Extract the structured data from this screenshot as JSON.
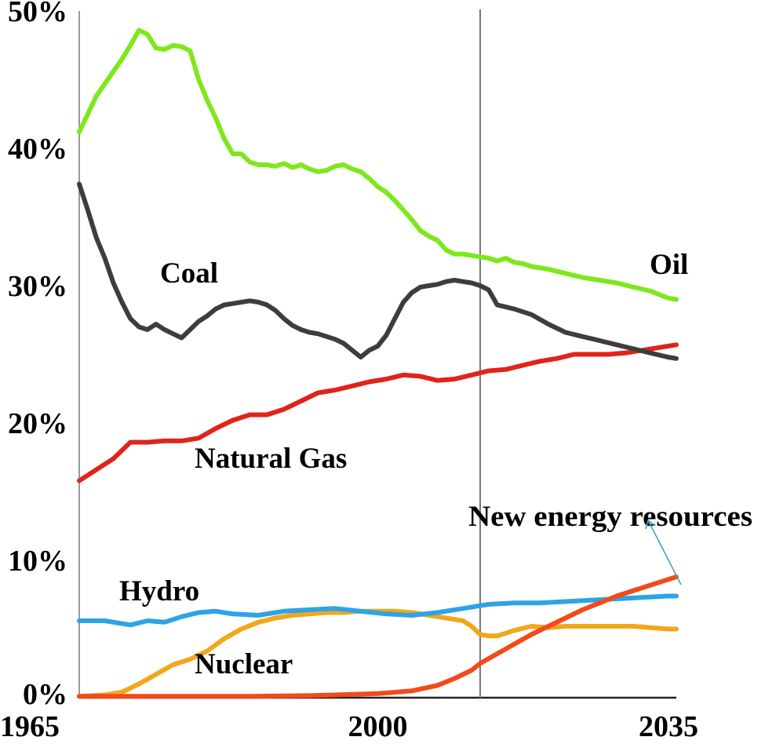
{
  "chart_data": {
    "type": "line",
    "title": "",
    "xlabel": "",
    "ylabel": "",
    "xlim": [
      1965,
      2035
    ],
    "ylim": [
      0,
      50
    ],
    "grid": false,
    "y_ticks": [
      {
        "value": 0,
        "label": "0%"
      },
      {
        "value": 10,
        "label": "10%"
      },
      {
        "value": 20,
        "label": "20%"
      },
      {
        "value": 30,
        "label": "30%"
      },
      {
        "value": 40,
        "label": "40%"
      },
      {
        "value": 50,
        "label": "50%"
      }
    ],
    "x_ticks": [
      {
        "value": 1965,
        "label": "1965"
      },
      {
        "value": 2000,
        "label": "2000"
      },
      {
        "value": 2035,
        "label": "2035"
      }
    ],
    "reference_line_x": 2012,
    "series": [
      {
        "name": "Oil",
        "label": "Oil",
        "color": "#7ee81c",
        "x": [
          1965,
          1966,
          1967,
          1968,
          1969,
          1970,
          1971,
          1972,
          1973,
          1974,
          1975,
          1976,
          1977,
          1978,
          1979,
          1980,
          1981,
          1982,
          1983,
          1984,
          1985,
          1986,
          1987,
          1988,
          1989,
          1990,
          1991,
          1992,
          1993,
          1994,
          1995,
          1996,
          1997,
          1998,
          1999,
          2000,
          2001,
          2002,
          2003,
          2004,
          2005,
          2006,
          2007,
          2008,
          2009,
          2010,
          2011,
          2012,
          2013,
          2014,
          2015,
          2016,
          2017,
          2018,
          2020,
          2022,
          2024,
          2026,
          2028,
          2030,
          2032,
          2034,
          2035
        ],
        "y": [
          41.2,
          42.5,
          43.8,
          44.7,
          45.6,
          46.5,
          47.5,
          48.6,
          48.3,
          47.3,
          47.2,
          47.5,
          47.4,
          47.1,
          45.0,
          43.5,
          42.2,
          40.7,
          39.6,
          39.6,
          39.0,
          38.8,
          38.8,
          38.7,
          38.9,
          38.6,
          38.8,
          38.5,
          38.3,
          38.4,
          38.7,
          38.8,
          38.5,
          38.3,
          37.8,
          37.2,
          36.8,
          36.2,
          35.5,
          34.8,
          34.0,
          33.6,
          33.3,
          32.6,
          32.3,
          32.3,
          32.2,
          32.1,
          32.0,
          31.8,
          32.0,
          31.7,
          31.6,
          31.4,
          31.2,
          30.9,
          30.6,
          30.4,
          30.2,
          29.9,
          29.6,
          29.1,
          29.0
        ]
      },
      {
        "name": "Coal",
        "label": "Coal",
        "color": "#3d3d3d",
        "x": [
          1965,
          1966,
          1967,
          1968,
          1969,
          1970,
          1971,
          1972,
          1973,
          1974,
          1975,
          1976,
          1977,
          1978,
          1979,
          1980,
          1981,
          1982,
          1983,
          1984,
          1985,
          1986,
          1987,
          1988,
          1989,
          1990,
          1991,
          1992,
          1993,
          1994,
          1995,
          1996,
          1997,
          1998,
          1999,
          2000,
          2001,
          2002,
          2003,
          2004,
          2005,
          2006,
          2007,
          2008,
          2009,
          2010,
          2011,
          2012,
          2013,
          2014,
          2016,
          2018,
          2020,
          2022,
          2024,
          2026,
          2028,
          2030,
          2032,
          2034,
          2035
        ],
        "y": [
          37.4,
          35.5,
          33.5,
          32.0,
          30.2,
          28.8,
          27.6,
          27.0,
          26.8,
          27.2,
          26.8,
          26.5,
          26.2,
          26.8,
          27.4,
          27.8,
          28.3,
          28.6,
          28.7,
          28.8,
          28.9,
          28.8,
          28.6,
          28.2,
          27.6,
          27.1,
          26.8,
          26.6,
          26.5,
          26.3,
          26.1,
          25.8,
          25.3,
          24.8,
          25.3,
          25.6,
          26.4,
          27.6,
          28.8,
          29.5,
          29.9,
          30.0,
          30.1,
          30.3,
          30.4,
          30.3,
          30.2,
          30.0,
          29.7,
          28.6,
          28.3,
          27.9,
          27.2,
          26.6,
          26.3,
          26.0,
          25.7,
          25.4,
          25.1,
          24.8,
          24.7
        ]
      },
      {
        "name": "Natural Gas",
        "label": "Natural Gas",
        "color": "#e02419",
        "x": [
          1965,
          1967,
          1969,
          1971,
          1973,
          1975,
          1977,
          1979,
          1981,
          1983,
          1985,
          1987,
          1989,
          1991,
          1993,
          1995,
          1997,
          1999,
          2001,
          2003,
          2005,
          2007,
          2009,
          2011,
          2013,
          2015,
          2017,
          2019,
          2021,
          2023,
          2025,
          2027,
          2029,
          2031,
          2033,
          2035
        ],
        "y": [
          15.8,
          16.6,
          17.4,
          18.6,
          18.6,
          18.7,
          18.7,
          18.9,
          19.6,
          20.2,
          20.6,
          20.6,
          21.0,
          21.6,
          22.2,
          22.4,
          22.7,
          23.0,
          23.2,
          23.5,
          23.4,
          23.1,
          23.2,
          23.5,
          23.8,
          23.9,
          24.2,
          24.5,
          24.7,
          25.0,
          25.0,
          25.0,
          25.1,
          25.3,
          25.5,
          25.7
        ]
      },
      {
        "name": "Hydro",
        "label": "Hydro",
        "color": "#2ea3e6",
        "x": [
          1965,
          1968,
          1971,
          1973,
          1975,
          1977,
          1979,
          1981,
          1983,
          1986,
          1989,
          1992,
          1995,
          1998,
          2001,
          2004,
          2007,
          2010,
          2013,
          2016,
          2019,
          2022,
          2025,
          2028,
          2031,
          2034,
          2035
        ],
        "y": [
          5.6,
          5.6,
          5.3,
          5.6,
          5.5,
          5.9,
          6.2,
          6.3,
          6.1,
          6.0,
          6.3,
          6.4,
          6.5,
          6.3,
          6.1,
          6.0,
          6.2,
          6.5,
          6.8,
          6.9,
          6.9,
          7.0,
          7.1,
          7.2,
          7.3,
          7.4,
          7.4
        ]
      },
      {
        "name": "Nuclear",
        "label": "Nuclear",
        "color": "#f2a71a",
        "x": [
          1965,
          1968,
          1970,
          1972,
          1974,
          1976,
          1978,
          1980,
          1982,
          1984,
          1986,
          1988,
          1990,
          1992,
          1994,
          1996,
          1998,
          2000,
          2002,
          2004,
          2006,
          2008,
          2010,
          2011,
          2012,
          2013,
          2014,
          2016,
          2018,
          2020,
          2022,
          2024,
          2026,
          2028,
          2030,
          2032,
          2034,
          2035
        ],
        "y": [
          0.1,
          0.2,
          0.4,
          1.0,
          1.7,
          2.4,
          2.8,
          3.4,
          4.3,
          5.0,
          5.5,
          5.8,
          6.0,
          6.1,
          6.2,
          6.2,
          6.3,
          6.3,
          6.3,
          6.2,
          6.0,
          5.8,
          5.6,
          5.2,
          4.6,
          4.5,
          4.5,
          4.9,
          5.2,
          5.1,
          5.2,
          5.2,
          5.2,
          5.2,
          5.2,
          5.1,
          5.0,
          5.0
        ]
      },
      {
        "name": "New energy resources",
        "label": "New energy resources",
        "color": "#f24a1a",
        "x": [
          1965,
          1975,
          1985,
          1992,
          1995,
          2000,
          2004,
          2007,
          2009,
          2011,
          2012,
          2014,
          2016,
          2018,
          2020,
          2022,
          2024,
          2026,
          2028,
          2030,
          2032,
          2034,
          2035
        ],
        "y": [
          0.1,
          0.1,
          0.1,
          0.15,
          0.2,
          0.3,
          0.5,
          0.9,
          1.4,
          2.0,
          2.5,
          3.2,
          3.9,
          4.6,
          5.2,
          5.8,
          6.4,
          6.9,
          7.4,
          7.8,
          8.2,
          8.6,
          8.8
        ]
      }
    ]
  }
}
